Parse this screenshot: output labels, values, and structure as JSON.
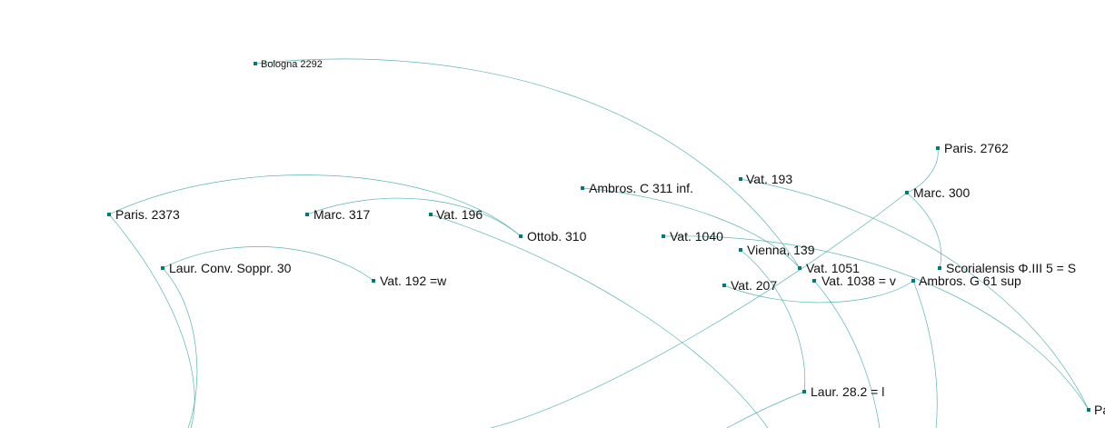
{
  "diagram": {
    "colors": {
      "edge": "#3fa7a7",
      "node": "#007a7a",
      "label": "#111111"
    },
    "nodes": [
      {
        "id": "bologna-2292",
        "label": "Bologna 2292"
      },
      {
        "id": "paris-2373",
        "label": "Paris. 2373"
      },
      {
        "id": "marc-317",
        "label": "Marc. 317"
      },
      {
        "id": "vat-196",
        "label": "Vat. 196"
      },
      {
        "id": "ottob-310",
        "label": "Ottob. 310"
      },
      {
        "id": "ambros-c311",
        "label": "Ambros. C 311 inf."
      },
      {
        "id": "vat-193",
        "label": "Vat. 193"
      },
      {
        "id": "paris-2762",
        "label": "Paris. 2762"
      },
      {
        "id": "marc-300",
        "label": "Marc. 300"
      },
      {
        "id": "vat-1040",
        "label": "Vat. 1040"
      },
      {
        "id": "vienna-139",
        "label": "Vienna, 139"
      },
      {
        "id": "vat-1051",
        "label": "Vat. 1051"
      },
      {
        "id": "scorialensis",
        "label": "Scorialensis Φ.III 5 = S"
      },
      {
        "id": "vat-1038",
        "label": "Vat. 1038 = v"
      },
      {
        "id": "ambros-g61",
        "label": "Ambros. G 61 sup"
      },
      {
        "id": "vat-207",
        "label": "Vat. 207"
      },
      {
        "id": "laur-conv",
        "label": "Laur. Conv. Soppr. 30"
      },
      {
        "id": "vat-192",
        "label": "Vat. 192 =w"
      },
      {
        "id": "laur-28-2",
        "label": "Laur. 28.2 = l"
      },
      {
        "id": "pa-edge",
        "label": "Pa"
      }
    ]
  }
}
